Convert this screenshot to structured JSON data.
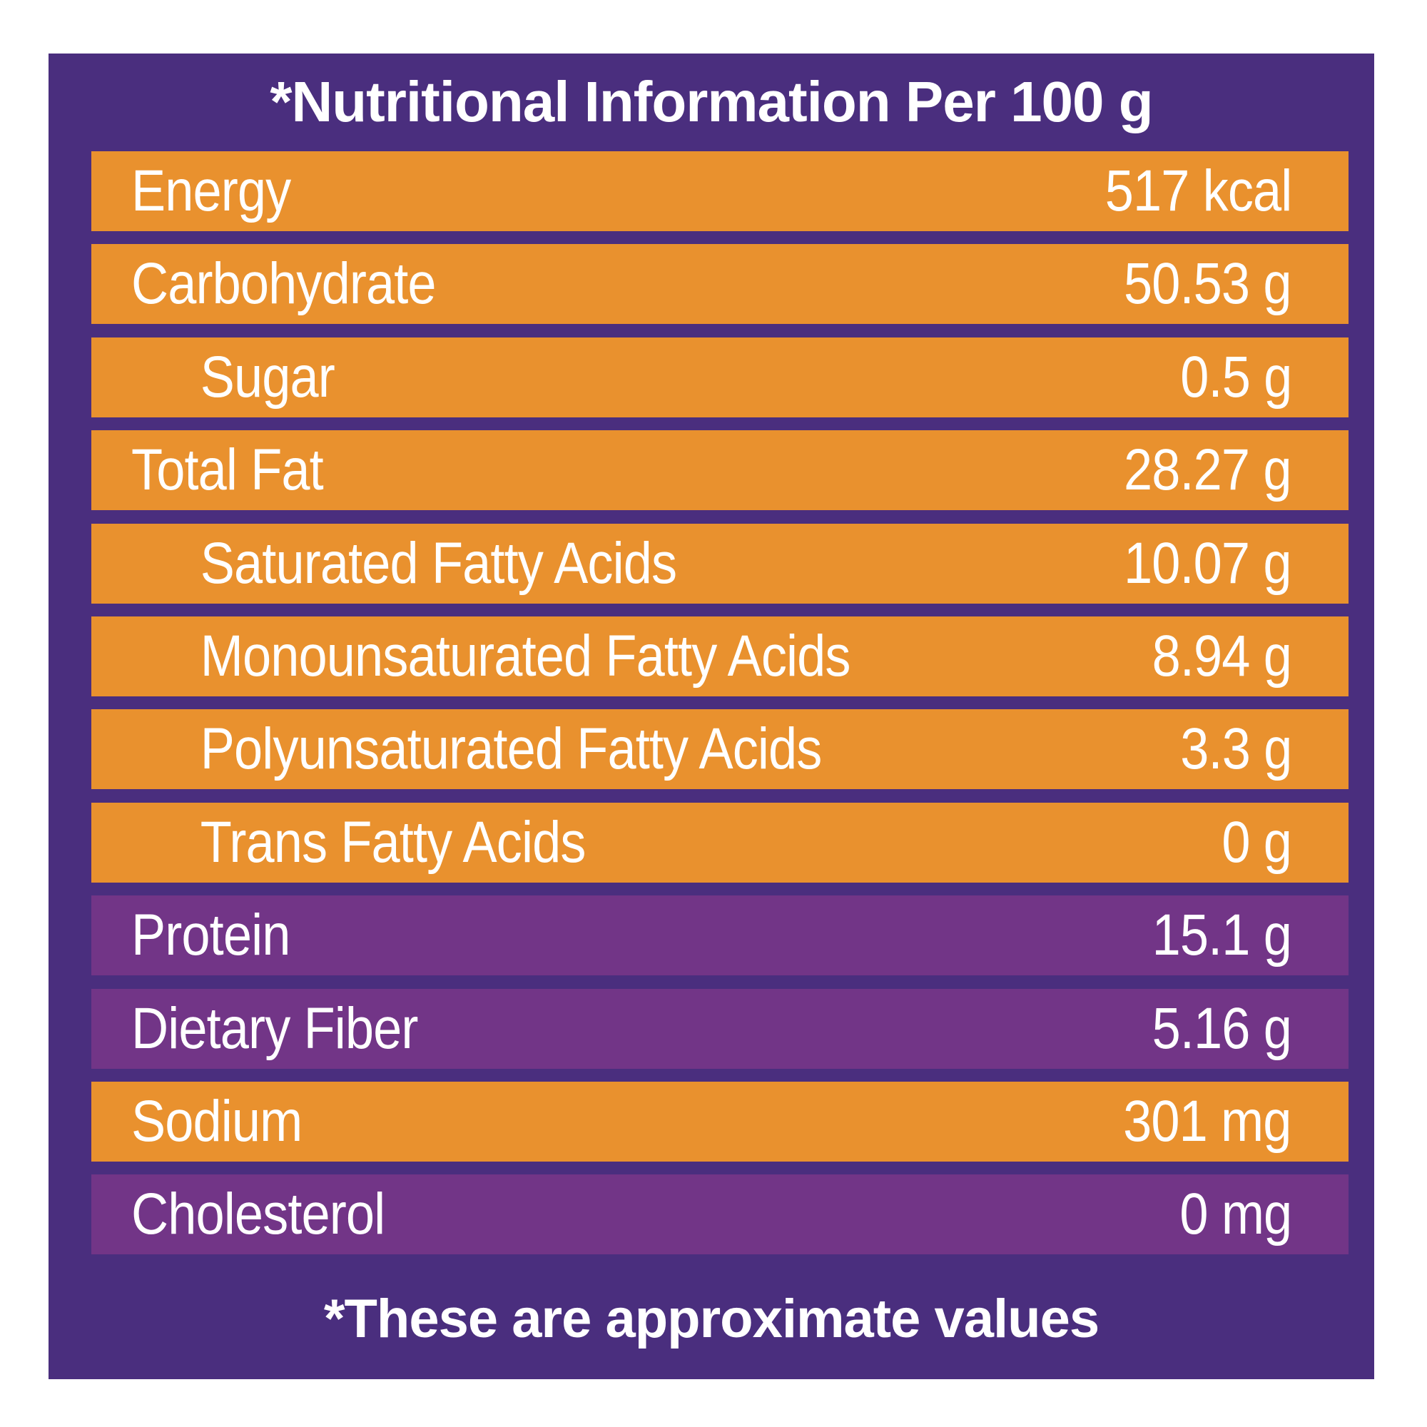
{
  "title": "*Nutritional Information Per 100 g",
  "colors": {
    "background": "#4a2e7e",
    "orange_row": "#e9912e",
    "purple_row": "#723587",
    "text": "#ffffff"
  },
  "rows": [
    {
      "label": "Energy",
      "value": "517 kcal",
      "style": "orange",
      "indent": false
    },
    {
      "label": "Carbohydrate",
      "value": "50.53 g",
      "style": "orange",
      "indent": false
    },
    {
      "label": "Sugar",
      "value": "0.5 g",
      "style": "orange",
      "indent": true
    },
    {
      "label": "Total Fat",
      "value": "28.27 g",
      "style": "orange",
      "indent": false
    },
    {
      "label": "Saturated Fatty Acids",
      "value": "10.07 g",
      "style": "orange",
      "indent": true
    },
    {
      "label": "Monounsaturated Fatty Acids",
      "value": "8.94 g",
      "style": "orange",
      "indent": true
    },
    {
      "label": "Polyunsaturated Fatty Acids",
      "value": "3.3 g",
      "style": "orange",
      "indent": true
    },
    {
      "label": "Trans Fatty Acids",
      "value": "0 g",
      "style": "orange",
      "indent": true
    },
    {
      "label": "Protein",
      "value": "15.1 g",
      "style": "purple",
      "indent": false
    },
    {
      "label": "Dietary Fiber",
      "value": "5.16 g",
      "style": "purple",
      "indent": false
    },
    {
      "label": "Sodium",
      "value": "301 mg",
      "style": "orange",
      "indent": false
    },
    {
      "label": "Cholesterol",
      "value": "0 mg",
      "style": "purple",
      "indent": false
    }
  ],
  "footnote": "*These are approximate values"
}
